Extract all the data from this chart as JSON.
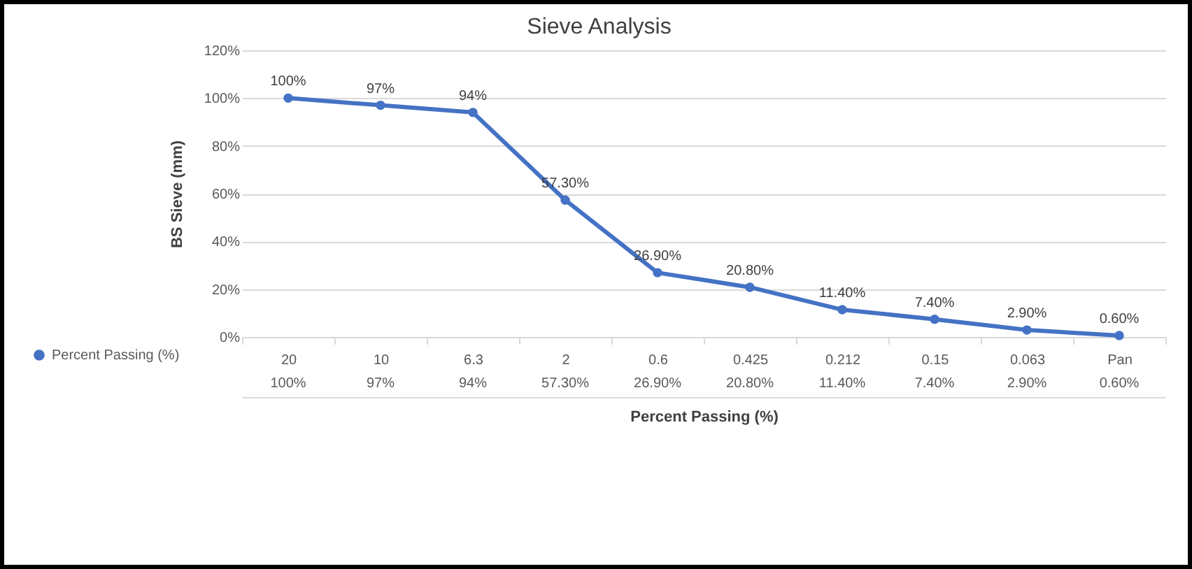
{
  "chart_data": {
    "type": "line",
    "title": "Sieve Analysis",
    "xlabel": "Percent Passing (%)",
    "ylabel": "BS Sieve (mm)",
    "categories": [
      "20",
      "10",
      "6.3",
      "2",
      "0.6",
      "0.425",
      "0.212",
      "0.15",
      "0.063",
      "Pan"
    ],
    "series": [
      {
        "name": "Percent Passing (%)",
        "color": "#4472c4",
        "values": [
          100,
          97,
          94,
          57.3,
          26.9,
          20.8,
          11.4,
          7.4,
          2.9,
          0.6
        ],
        "value_labels": [
          "100%",
          "97%",
          "94%",
          "57.30%",
          "26.90%",
          "20.80%",
          "11.40%",
          "7.40%",
          "2.90%",
          "0.60%"
        ]
      }
    ],
    "ylim": [
      0,
      120
    ],
    "yticks": [
      {
        "value": 0,
        "label": "0%"
      },
      {
        "value": 20,
        "label": "20%"
      },
      {
        "value": 40,
        "label": "40%"
      },
      {
        "value": 60,
        "label": "60%"
      },
      {
        "value": 80,
        "label": "80%"
      },
      {
        "value": 100,
        "label": "100%"
      },
      {
        "value": 120,
        "label": "120%"
      }
    ],
    "grid": "y",
    "marker": "circle",
    "line_style": "solid",
    "legend": "bottom left"
  }
}
